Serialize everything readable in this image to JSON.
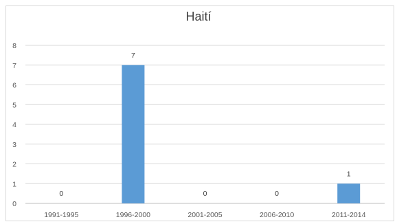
{
  "chart_data": {
    "type": "bar",
    "title": "Haití",
    "categories": [
      "1991-1995",
      "1996-2000",
      "2001-2005",
      "2006-2010",
      "2011-2014"
    ],
    "series": [
      {
        "values": [
          0,
          7,
          0,
          0,
          1
        ]
      }
    ],
    "data_labels": [
      "0",
      "7",
      "0",
      "0",
      "1"
    ],
    "ylim": [
      0,
      8
    ],
    "yticks": [
      0,
      1,
      2,
      3,
      4,
      5,
      6,
      7,
      8
    ],
    "grid": true,
    "legend": "none",
    "colors": {
      "bar": "#5b9bd5",
      "grid": "#d9d9d9",
      "axis": "#bfbfbf"
    }
  }
}
